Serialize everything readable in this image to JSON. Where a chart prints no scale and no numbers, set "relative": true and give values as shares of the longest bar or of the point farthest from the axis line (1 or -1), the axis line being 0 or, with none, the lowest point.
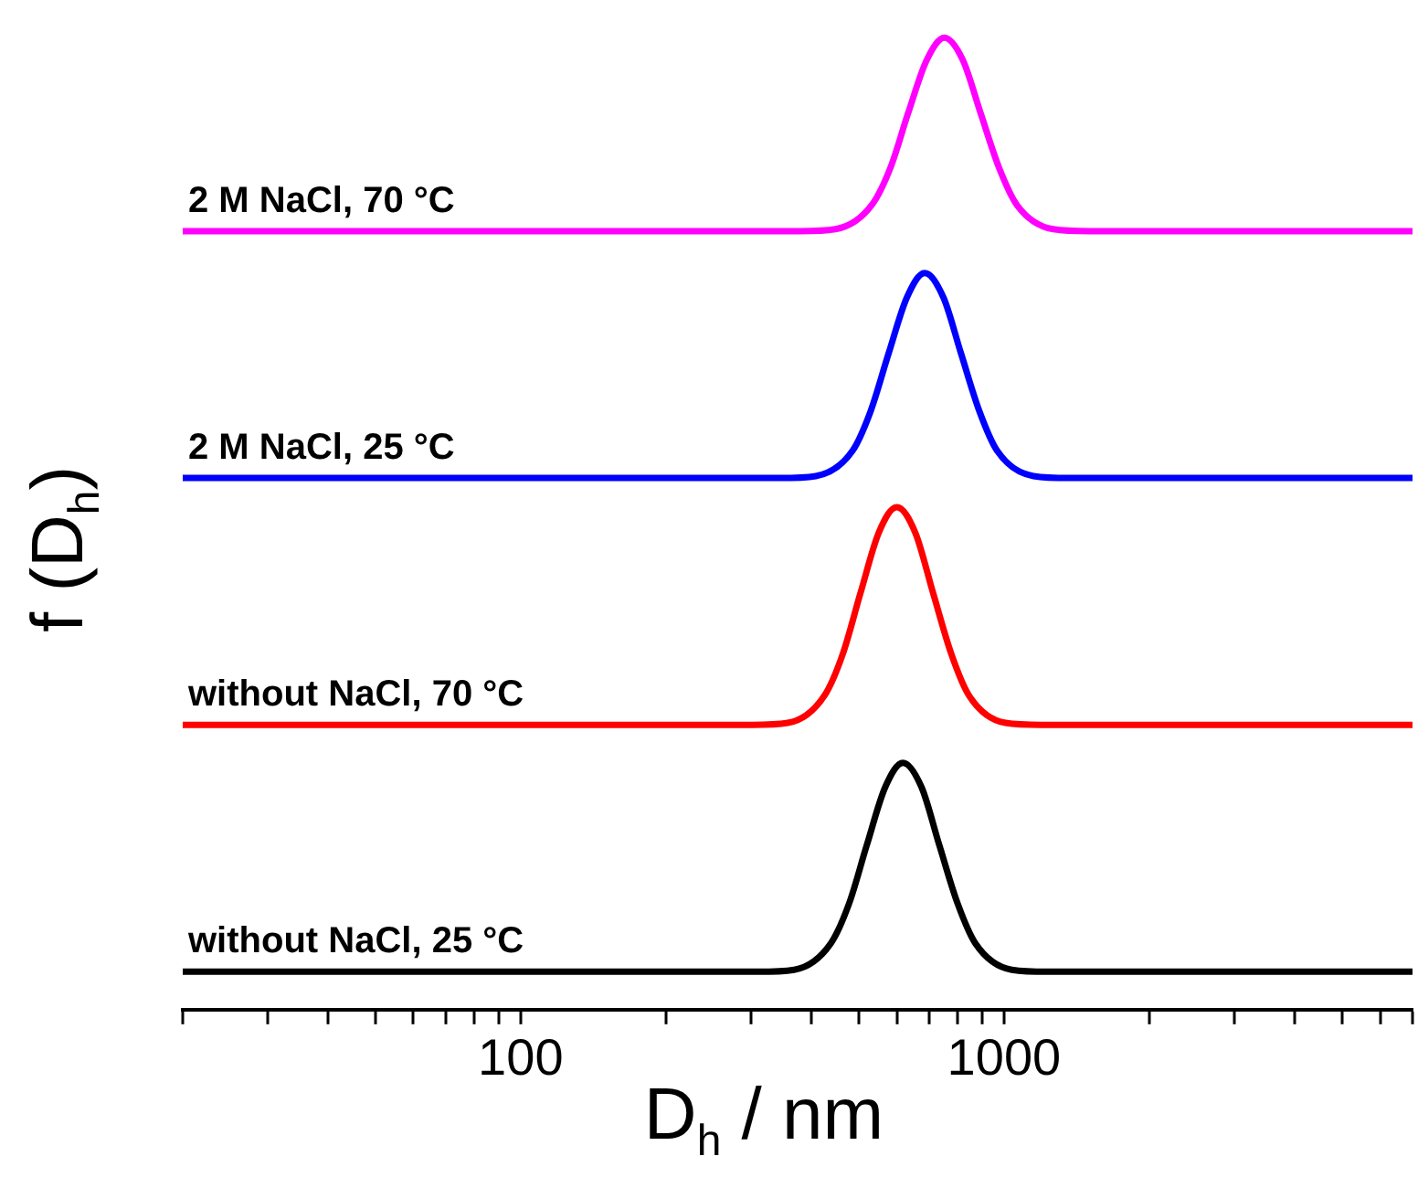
{
  "chart_data": {
    "type": "line",
    "relative": true,
    "xlabel": "D$_{h}$ / nm",
    "ylabel": "f (D$_{h}$)",
    "log": "x",
    "xlim": [
      20,
      7000
    ],
    "xticks": [
      {
        "value": 20,
        "label": null
      },
      {
        "value": 30,
        "label": null
      },
      {
        "value": 40,
        "label": null
      },
      {
        "value": 50,
        "label": null
      },
      {
        "value": 60,
        "label": null
      },
      {
        "value": 70,
        "label": null
      },
      {
        "value": 80,
        "label": null
      },
      {
        "value": 90,
        "label": null
      },
      100,
      {
        "value": 200,
        "label": null
      },
      {
        "value": 300,
        "label": null
      },
      {
        "value": 400,
        "label": null
      },
      {
        "value": 500,
        "label": null
      },
      {
        "value": 600,
        "label": null
      },
      {
        "value": 700,
        "label": null
      },
      {
        "value": 800,
        "label": null
      },
      {
        "value": 900,
        "label": null
      },
      1000,
      {
        "value": 2000,
        "label": null
      },
      {
        "value": 3000,
        "label": null
      },
      {
        "value": 4000,
        "label": null
      },
      {
        "value": 5000,
        "label": null
      },
      {
        "value": 6000,
        "label": null
      },
      {
        "value": 7000,
        "label": null
      }
    ],
    "tick_labels": "x",
    "grid": false,
    "legend": false,
    "marker": "none",
    "line_style": "solid",
    "series": [
      {
        "name": "without NaCl, 25 °C",
        "color": "#000000",
        "x": [
          20,
          310,
          368,
          438,
          478,
          520,
          568,
          618,
          675,
          735,
          802,
          873,
          1038,
          1233,
          7000
        ],
        "values": [
          0.039,
          0.039,
          0.041,
          0.068,
          0.109,
          0.169,
          0.229,
          0.254,
          0.229,
          0.169,
          0.109,
          0.068,
          0.041,
          0.039,
          0.039
        ]
      },
      {
        "name": "without NaCl, 70 °C",
        "color": "#ff0000",
        "x": [
          20,
          301,
          357,
          425,
          464,
          505,
          551,
          600,
          655,
          713,
          778,
          847,
          1007,
          1197,
          7000
        ],
        "values": [
          0.293,
          0.293,
          0.295,
          0.323,
          0.366,
          0.429,
          0.491,
          0.517,
          0.491,
          0.429,
          0.366,
          0.323,
          0.295,
          0.293,
          0.293
        ]
      },
      {
        "name": "2 M NaCl, 25 °C",
        "color": "#0000ff",
        "x": [
          20,
          344,
          408,
          486,
          530,
          577,
          630,
          685,
          749,
          815,
          889,
          968,
          1151,
          1367,
          7000
        ],
        "values": [
          0.547,
          0.547,
          0.549,
          0.575,
          0.616,
          0.675,
          0.733,
          0.758,
          0.733,
          0.675,
          0.616,
          0.575,
          0.549,
          0.547,
          0.547
        ]
      },
      {
        "name": "2 M NaCl, 70 °C",
        "color": "#ff00ff",
        "x": [
          20,
          378,
          448,
          533,
          582,
          633,
          692,
          753,
          822,
          895,
          977,
          1063,
          1264,
          1502,
          7000
        ],
        "values": [
          0.801,
          0.801,
          0.803,
          0.828,
          0.866,
          0.922,
          0.977,
          1,
          0.977,
          0.922,
          0.866,
          0.828,
          0.803,
          0.801,
          0.801
        ]
      }
    ]
  }
}
